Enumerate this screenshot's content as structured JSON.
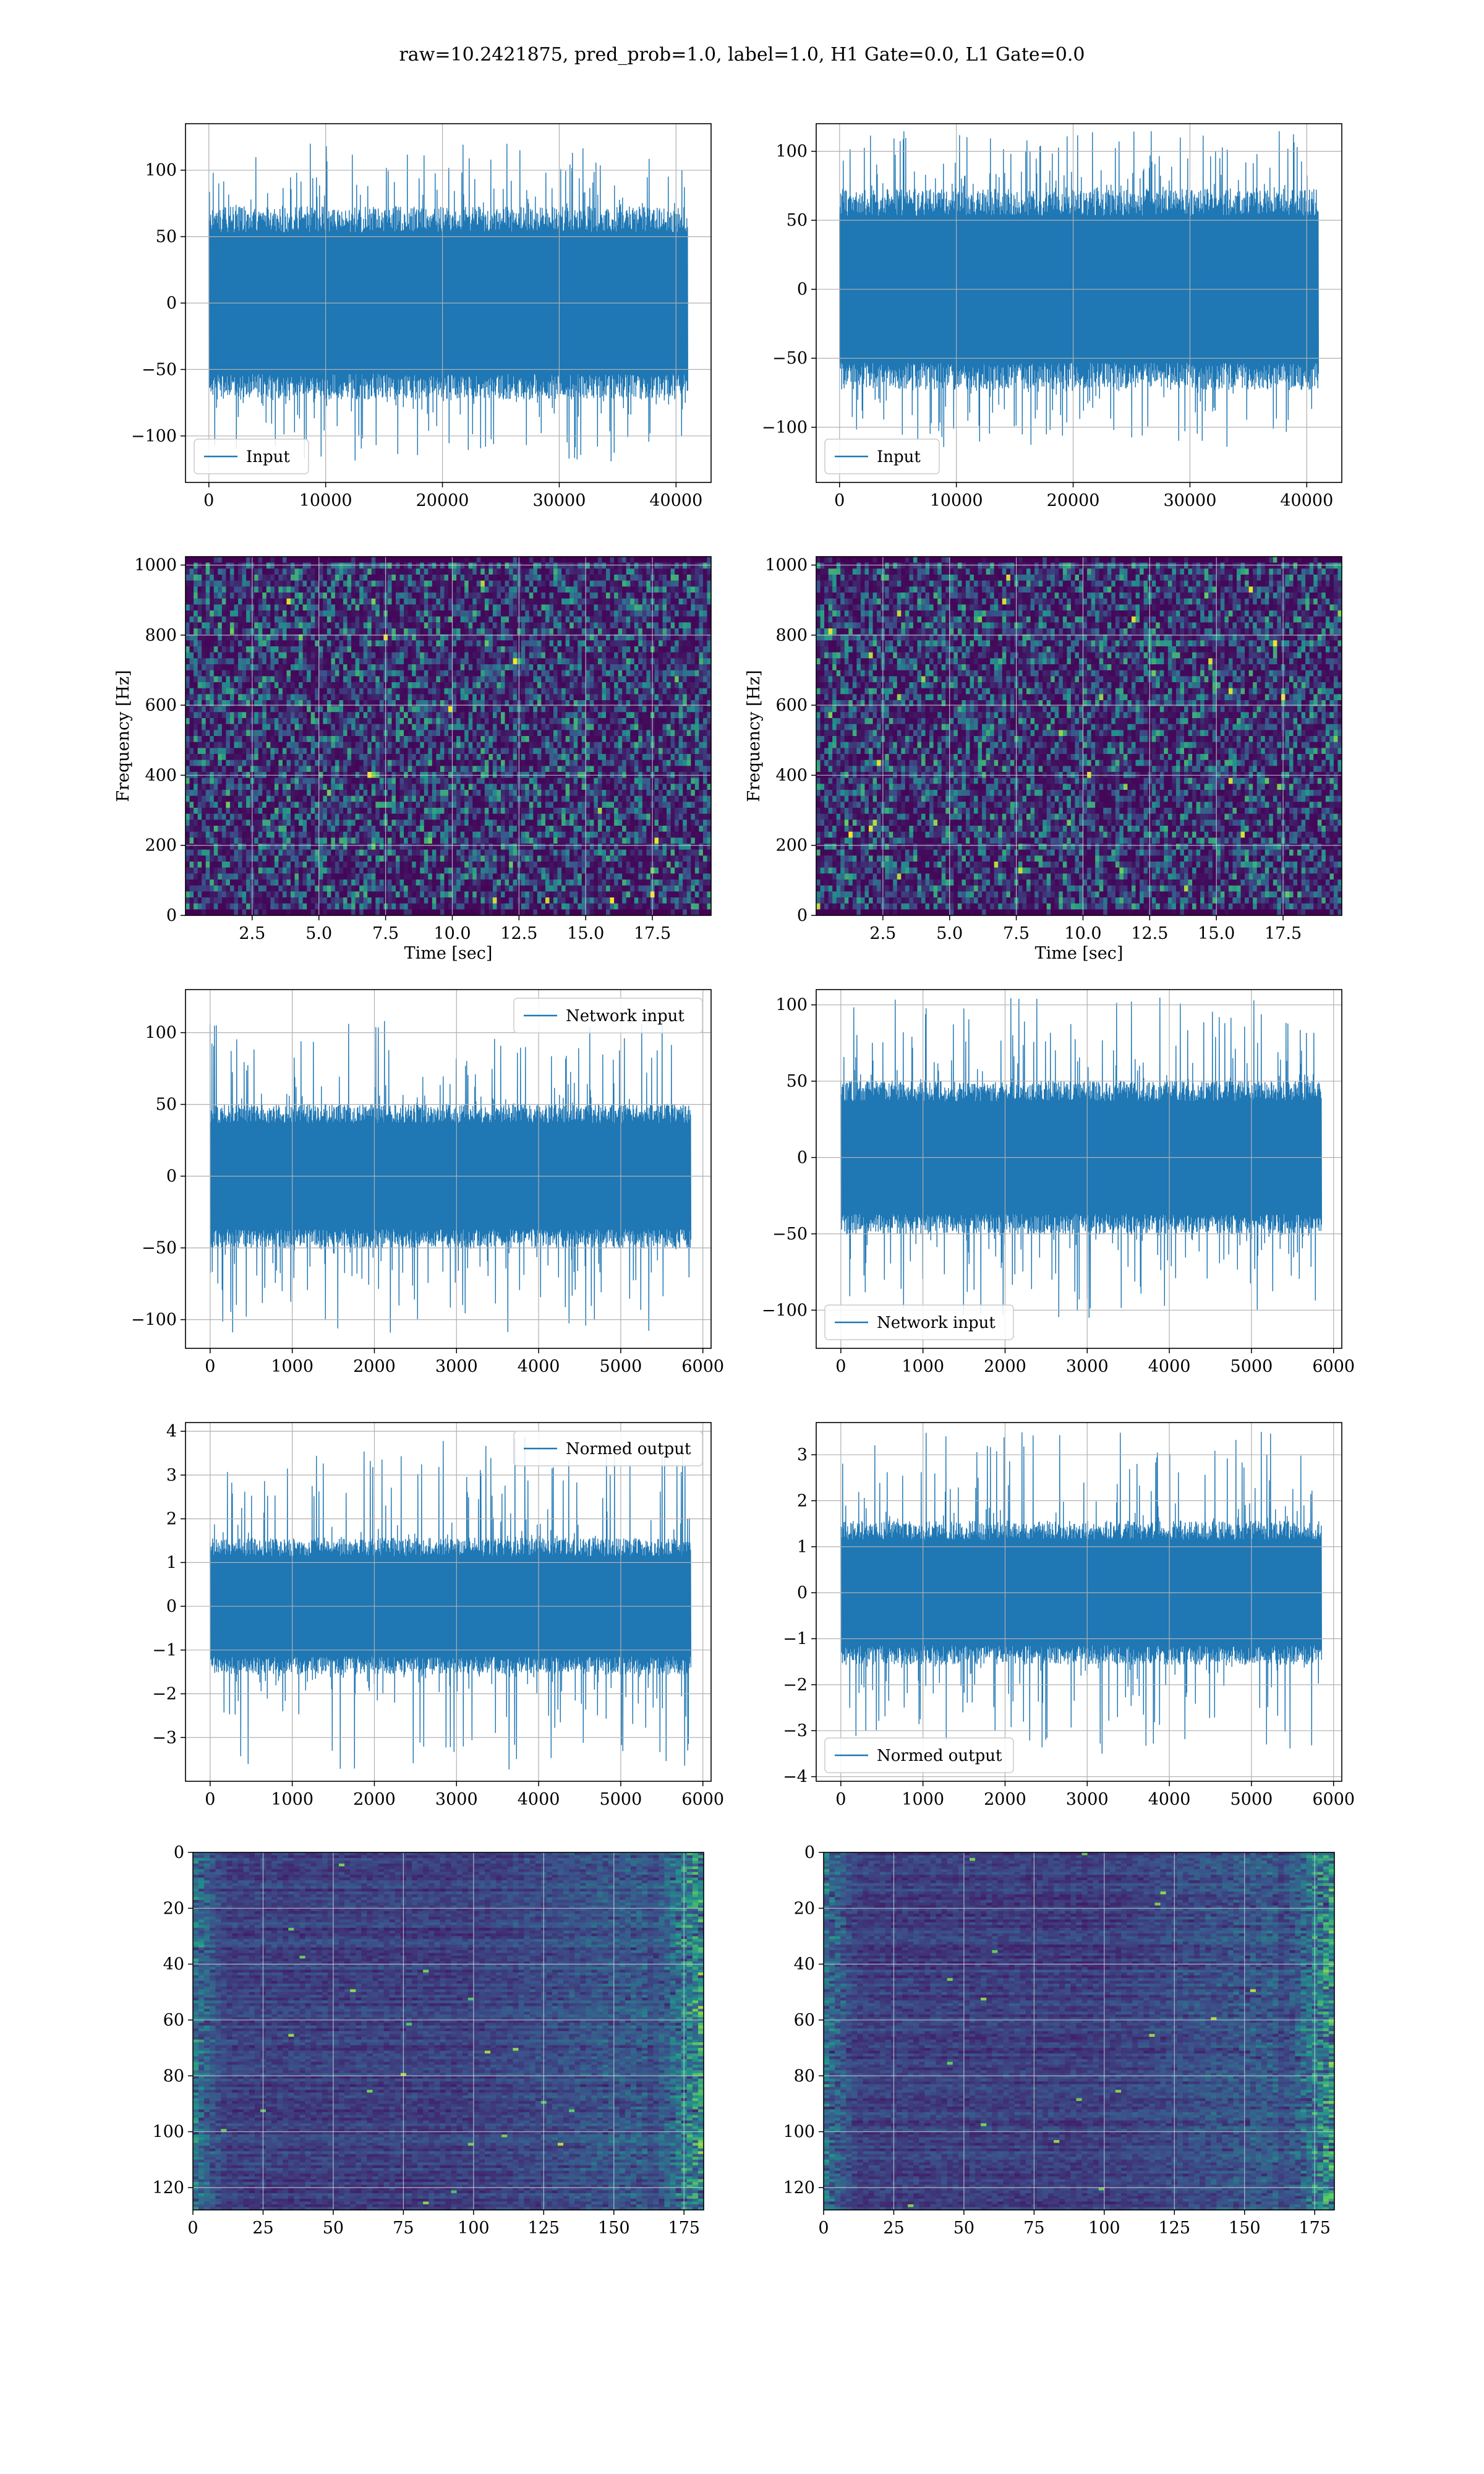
{
  "figure": {
    "suptitle": "raw=10.2421875, pred_prob=1.0, label=1.0, H1 Gate=0.0, L1 Gate=0.0"
  },
  "colors": {
    "series": "#1f77b4",
    "grid": "#b0b0b0",
    "axes": "#000000",
    "background": "#ffffff",
    "viridis_low": "#440154",
    "viridis_mid": "#21918c",
    "viridis_high": "#fde725"
  },
  "chart_data": [
    {
      "type": "line",
      "id": "input-h1",
      "xlim": [
        -2000,
        43000
      ],
      "ylim": [
        -135,
        135
      ],
      "xticks": [
        0,
        10000,
        20000,
        30000,
        40000
      ],
      "yticks": [
        -100,
        -50,
        0,
        50,
        100
      ],
      "n_points": 40960,
      "envelope": {
        "core": 65,
        "peak": 120
      },
      "legend": {
        "label": "Input",
        "loc": "lower left"
      },
      "xlabel": "",
      "ylabel": "",
      "grid": true
    },
    {
      "type": "line",
      "id": "input-l1",
      "xlim": [
        -2000,
        43000
      ],
      "ylim": [
        -140,
        120
      ],
      "xticks": [
        0,
        10000,
        20000,
        30000,
        40000
      ],
      "yticks": [
        -100,
        -50,
        0,
        50,
        100
      ],
      "n_points": 40960,
      "envelope": {
        "core": 65,
        "peak": 115
      },
      "legend": {
        "label": "Input",
        "loc": "lower left"
      },
      "xlabel": "",
      "ylabel": "",
      "grid": true
    },
    {
      "type": "heatmap",
      "id": "spectrogram-h1",
      "xlim": [
        0,
        19.7
      ],
      "ylim": [
        0,
        1024
      ],
      "xticks": [
        2.5,
        5.0,
        7.5,
        10.0,
        12.5,
        15.0,
        17.5
      ],
      "yticks": [
        0,
        200,
        400,
        600,
        800,
        1000
      ],
      "xtick_labels": [
        "2.5",
        "5.0",
        "7.5",
        "10.0",
        "12.5",
        "15.0",
        "17.5"
      ],
      "xlabel": "Time [sec]",
      "ylabel": "Frequency [Hz]",
      "colormap": "viridis",
      "grid": true
    },
    {
      "type": "heatmap",
      "id": "spectrogram-l1",
      "xlim": [
        0,
        19.7
      ],
      "ylim": [
        0,
        1024
      ],
      "xticks": [
        2.5,
        5.0,
        7.5,
        10.0,
        12.5,
        15.0,
        17.5
      ],
      "yticks": [
        0,
        200,
        400,
        600,
        800,
        1000
      ],
      "xtick_labels": [
        "2.5",
        "5.0",
        "7.5",
        "10.0",
        "12.5",
        "15.0",
        "17.5"
      ],
      "xlabel": "Time [sec]",
      "ylabel": "Frequency [Hz]",
      "colormap": "viridis",
      "grid": true
    },
    {
      "type": "line",
      "id": "network-input-h1",
      "xlim": [
        -300,
        6100
      ],
      "ylim": [
        -120,
        130
      ],
      "xticks": [
        0,
        1000,
        2000,
        3000,
        4000,
        5000,
        6000
      ],
      "yticks": [
        -100,
        -50,
        0,
        50,
        100
      ],
      "n_points": 5850,
      "envelope": {
        "core": 45,
        "peak": 110
      },
      "legend": {
        "label": "Network input",
        "loc": "upper right"
      },
      "xlabel": "",
      "ylabel": "",
      "grid": true
    },
    {
      "type": "line",
      "id": "network-input-l1",
      "xlim": [
        -300,
        6100
      ],
      "ylim": [
        -125,
        110
      ],
      "xticks": [
        0,
        1000,
        2000,
        3000,
        4000,
        5000,
        6000
      ],
      "yticks": [
        -100,
        -50,
        0,
        50,
        100
      ],
      "n_points": 5850,
      "envelope": {
        "core": 45,
        "peak": 105
      },
      "legend": {
        "label": "Network input",
        "loc": "lower left"
      },
      "xlabel": "",
      "ylabel": "",
      "grid": true
    },
    {
      "type": "line",
      "id": "normed-output-h1",
      "xlim": [
        -300,
        6100
      ],
      "ylim": [
        -4.0,
        4.2
      ],
      "xticks": [
        0,
        1000,
        2000,
        3000,
        4000,
        5000,
        6000
      ],
      "yticks": [
        -3,
        -2,
        -1,
        0,
        1,
        2,
        3,
        4
      ],
      "n_points": 5850,
      "envelope": {
        "core": 1.4,
        "peak": 3.9
      },
      "legend": {
        "label": "Normed output",
        "loc": "upper right"
      },
      "xlabel": "",
      "ylabel": "",
      "grid": true
    },
    {
      "type": "line",
      "id": "normed-output-l1",
      "xlim": [
        -300,
        6100
      ],
      "ylim": [
        -4.1,
        3.7
      ],
      "xticks": [
        0,
        1000,
        2000,
        3000,
        4000,
        5000,
        6000
      ],
      "yticks": [
        -4,
        -3,
        -2,
        -1,
        0,
        1,
        2,
        3
      ],
      "n_points": 5850,
      "envelope": {
        "core": 1.4,
        "peak": 3.5
      },
      "legend": {
        "label": "Normed output",
        "loc": "lower left"
      },
      "xlabel": "",
      "ylabel": "",
      "grid": true
    },
    {
      "type": "heatmap",
      "id": "feature-map-h1",
      "xlim": [
        0,
        182
      ],
      "ylim": [
        128,
        0
      ],
      "xticks": [
        0,
        25,
        50,
        75,
        100,
        125,
        150,
        175
      ],
      "yticks": [
        0,
        20,
        40,
        60,
        80,
        100,
        120
      ],
      "shape": [
        128,
        182
      ],
      "colormap": "viridis",
      "xlabel": "",
      "ylabel": "",
      "grid": true
    },
    {
      "type": "heatmap",
      "id": "feature-map-l1",
      "xlim": [
        0,
        182
      ],
      "ylim": [
        128,
        0
      ],
      "xticks": [
        0,
        25,
        50,
        75,
        100,
        125,
        150,
        175
      ],
      "yticks": [
        0,
        20,
        40,
        60,
        80,
        100,
        120
      ],
      "shape": [
        128,
        182
      ],
      "colormap": "viridis",
      "xlabel": "",
      "ylabel": "",
      "grid": true
    }
  ]
}
